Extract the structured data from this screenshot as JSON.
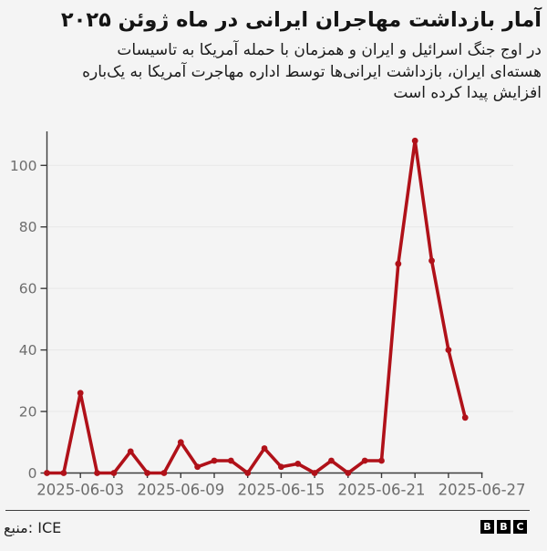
{
  "page": {
    "background": "#f4f4f4"
  },
  "chart_data": {
    "type": "line",
    "title": "آمار بازداشت مهاجران ایرانی در ماه ژوئن ۲۰۲۵",
    "subtitle": "در اوج جنگ اسرائیل و ایران و همزمان با حمله آمریکا به تاسیسات هسته‌ای ایران، بازداشت ایرانی‌ها توسط اداره مهاجرت آمریکا به یک‌باره افزایش پیدا کرده است",
    "subtitle_lines": [
      "در اوج جنگ اسرائیل و ایران و همزمان با حمله آمریکا به تاسیسات",
      "هسته‌ای ایران، بازداشت ایرانی‌ها توسط اداره مهاجرت آمریکا به یک‌باره",
      "افزایش پیدا کرده است"
    ],
    "x": [
      "2025-06-01",
      "2025-06-02",
      "2025-06-03",
      "2025-06-04",
      "2025-06-05",
      "2025-06-06",
      "2025-06-07",
      "2025-06-08",
      "2025-06-09",
      "2025-06-10",
      "2025-06-11",
      "2025-06-12",
      "2025-06-13",
      "2025-06-14",
      "2025-06-15",
      "2025-06-16",
      "2025-06-17",
      "2025-06-18",
      "2025-06-19",
      "2025-06-20",
      "2025-06-21",
      "2025-06-22",
      "2025-06-23",
      "2025-06-24",
      "2025-06-25",
      "2025-06-26"
    ],
    "values": [
      0,
      0,
      26,
      0,
      0,
      7,
      0,
      0,
      10,
      2,
      4,
      4,
      0,
      8,
      2,
      3,
      0,
      4,
      0,
      4,
      4,
      68,
      108,
      69,
      40,
      18
    ],
    "xlabel": "",
    "ylabel": "",
    "ylim": [
      0,
      111
    ],
    "y_ticks": [
      0,
      20,
      40,
      60,
      80,
      100
    ],
    "x_tick_labels": [
      "2025-06-03",
      "2025-06-09",
      "2025-06-15",
      "2025-06-21",
      "2025-06-27"
    ],
    "x_minor_ticks": [
      "2025-06-03",
      "2025-06-05",
      "2025-06-07",
      "2025-06-09",
      "2025-06-11",
      "2025-06-13",
      "2025-06-15",
      "2025-06-17",
      "2025-06-19",
      "2025-06-21",
      "2025-06-23",
      "2025-06-25",
      "2025-06-27"
    ],
    "grid": "horizontal",
    "legend": "none",
    "markers": true,
    "colors": {
      "line": "#b01119",
      "axis": "#3c3c3c",
      "grid": "#e7e7e7",
      "tick_label": "#6d6d6d"
    }
  },
  "footer": {
    "source_label": "منبع: ICE",
    "logo_letters": [
      "B",
      "B",
      "C"
    ]
  }
}
